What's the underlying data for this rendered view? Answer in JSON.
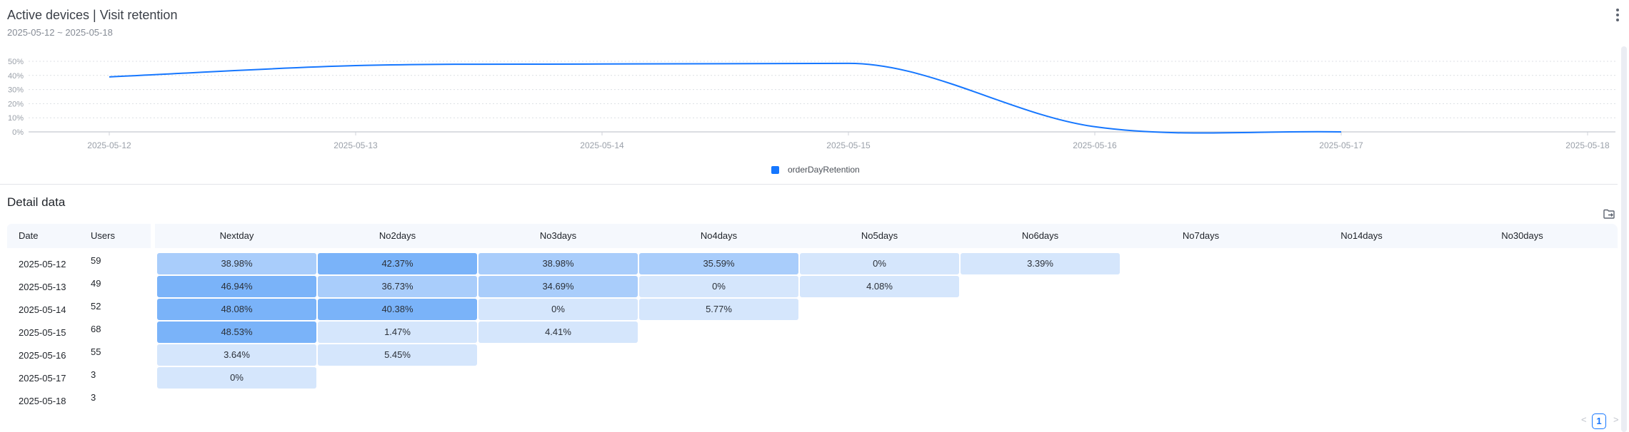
{
  "header": {
    "title": "Active devices | Visit retention",
    "date_range": "2025-05-12 ~ 2025-05-18"
  },
  "chart_data": {
    "type": "line",
    "x": [
      "2025-05-12",
      "2025-05-13",
      "2025-05-14",
      "2025-05-15",
      "2025-05-16",
      "2025-05-17",
      "2025-05-18"
    ],
    "series": [
      {
        "name": "orderDayRetention",
        "values": [
          38.98,
          46.94,
          48.08,
          48.53,
          3.64,
          0,
          null
        ],
        "color": "#1677ff"
      }
    ],
    "y_ticks": [
      "0%",
      "10%",
      "20%",
      "30%",
      "40%",
      "50%"
    ],
    "ylim": [
      0,
      50
    ],
    "grid": true,
    "legend": "bottom-center",
    "smooth": true
  },
  "detail": {
    "title": "Detail data",
    "columns": {
      "date": "Date",
      "users": "Users"
    },
    "retention_columns": [
      "Nextday",
      "No2days",
      "No3days",
      "No4days",
      "No5days",
      "No6days",
      "No7days",
      "No14days",
      "No30days"
    ],
    "rows": [
      {
        "date": "2025-05-12",
        "users": "59",
        "values": [
          "38.98%",
          "42.37%",
          "38.98%",
          "35.59%",
          "0%",
          "3.39%"
        ]
      },
      {
        "date": "2025-05-13",
        "users": "49",
        "values": [
          "46.94%",
          "36.73%",
          "34.69%",
          "0%",
          "4.08%"
        ]
      },
      {
        "date": "2025-05-14",
        "users": "52",
        "values": [
          "48.08%",
          "40.38%",
          "0%",
          "5.77%"
        ]
      },
      {
        "date": "2025-05-15",
        "users": "68",
        "values": [
          "48.53%",
          "1.47%",
          "4.41%"
        ]
      },
      {
        "date": "2025-05-16",
        "users": "55",
        "values": [
          "3.64%",
          "5.45%"
        ]
      },
      {
        "date": "2025-05-17",
        "users": "3",
        "values": [
          "0%"
        ]
      },
      {
        "date": "2025-05-18",
        "users": "3",
        "values": []
      }
    ],
    "heat_colors": {
      "high": "#7ab3f9",
      "mid": "#a9cdfb",
      "low": "#d5e6fc"
    }
  },
  "pagination": {
    "prev": "<",
    "current": "1",
    "next": ">"
  },
  "icons": {
    "menu": "more-vertical-icon",
    "export": "folder-export-icon"
  }
}
